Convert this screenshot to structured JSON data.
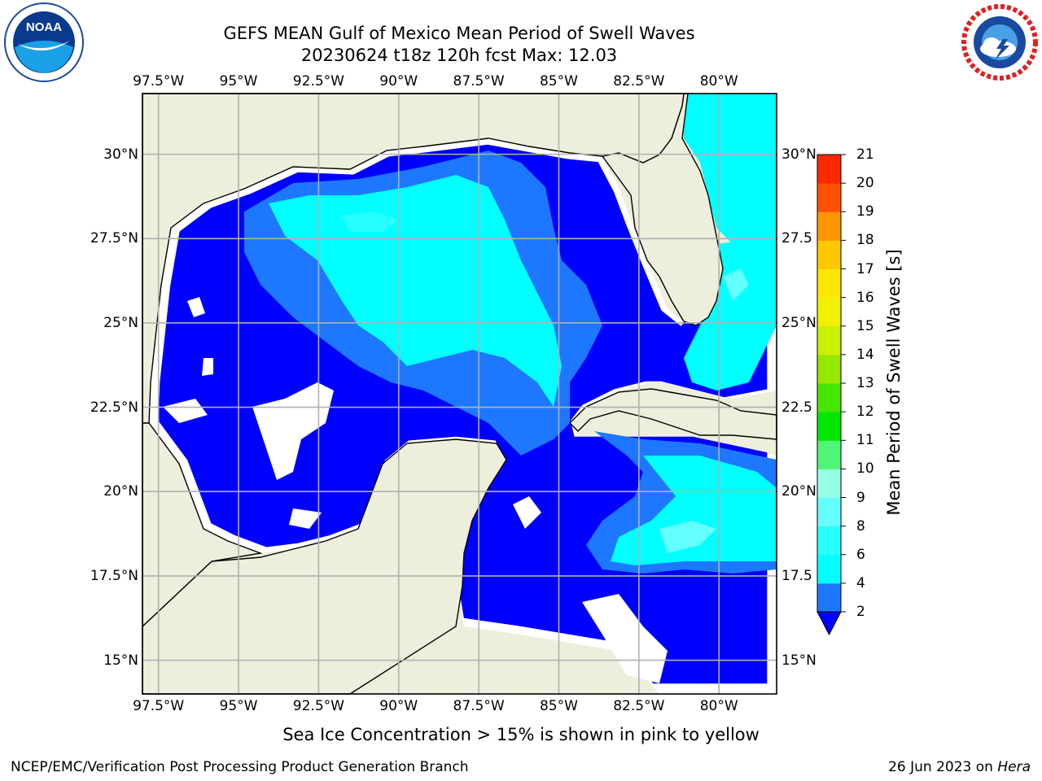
{
  "title_line1": "GEFS MEAN Gulf of Mexico Mean Period of Swell Waves",
  "title_line2": "20230624 t18z 120h fcst   Max: 12.03",
  "logos": {
    "left": "NOAA",
    "right": "NATIONAL WEATHER SERVICE"
  },
  "map": {
    "lon_ticks": [
      "97.5°W",
      "95°W",
      "92.5°W",
      "90°W",
      "87.5°W",
      "85°W",
      "82.5°W",
      "80°W"
    ],
    "lon_values": [
      -97.5,
      -95,
      -92.5,
      -90,
      -87.5,
      -85,
      -82.5,
      -80
    ],
    "lat_ticks_left": [
      "30°N",
      "27.5°N",
      "25°N",
      "22.5°N",
      "20°N",
      "17.5°N",
      "15°N"
    ],
    "lat_ticks_right": [
      "30°N",
      "27.5",
      "25°N",
      "22.5",
      "20°N",
      "17.5",
      "15°N"
    ],
    "lat_values": [
      30,
      27.5,
      25,
      22.5,
      20,
      17.5,
      15
    ],
    "lon_range": [
      -98,
      -78.2
    ],
    "lat_range": [
      14,
      31.8
    ],
    "land_color": "#eeeedc",
    "grid_color": "#b0b0b0",
    "grid": true
  },
  "colorbar": {
    "label": "Mean Period of Swell Waves [s]",
    "levels": [
      "2",
      "4",
      "6",
      "8",
      "9",
      "10",
      "11",
      "12",
      "13",
      "14",
      "15",
      "16",
      "17",
      "18",
      "19",
      "20",
      "21"
    ],
    "colors": [
      "#0000ff",
      "#1e78ff",
      "#00ffff",
      "#28ffff",
      "#64ffff",
      "#96ffe6",
      "#50f578",
      "#00e600",
      "#46e600",
      "#96e600",
      "#c8f000",
      "#f0f000",
      "#ffff00",
      "#ffe600",
      "#ffc800",
      "#ff9600",
      "#ff7800",
      "#ff5000",
      "#ff2800",
      "#ff0000"
    ],
    "extend": "min",
    "extend_color": "#0000ff"
  },
  "note": "Sea Ice Concentration > 15% is shown in pink to yellow",
  "footer_left": "NCEP/EMC/Verification Post Processing Product Generation Branch",
  "footer_right_date": "26 Jun 2023 on ",
  "footer_right_host": "Hera"
}
